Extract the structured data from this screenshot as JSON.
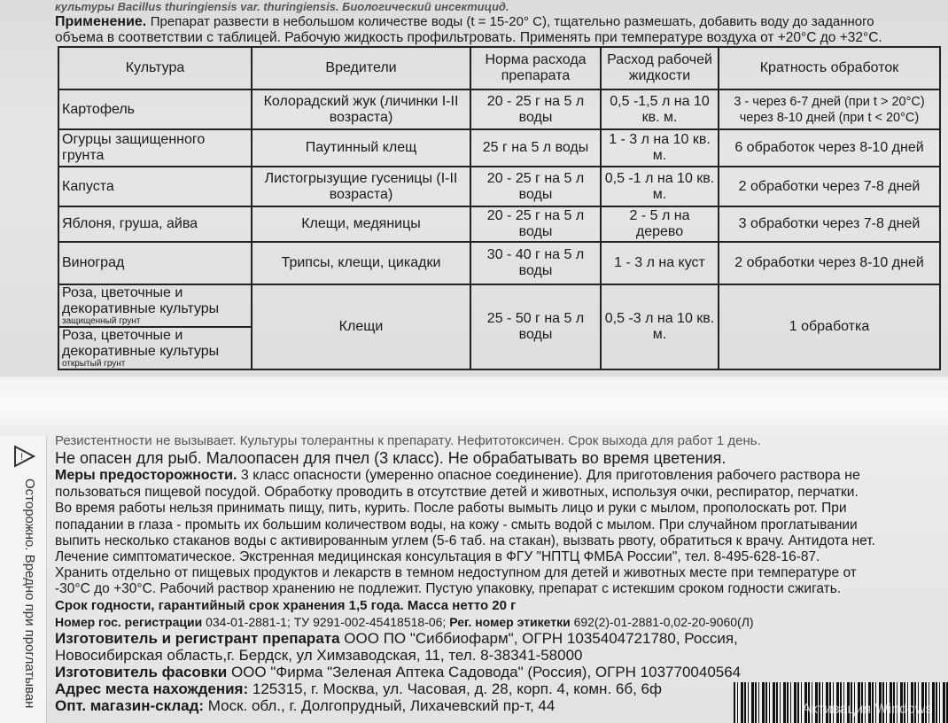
{
  "top_text": {
    "line0": "культуры Bacillus thuringiensis var. thuringiensis. Биологический инсектицид.",
    "application_label": "Применение.",
    "line1": "Препарат развести в небольшом количестве воды (t = 15-20° C), тщательно размешать, добавить воду до заданного",
    "line2": "объема в соответствии с таблицей. Рабочую жидкость профильтровать. Применять при температуре воздуха от +20°C до +32°C."
  },
  "table": {
    "headers": [
      "Культура",
      "Вредители",
      "Норма расхода препарата",
      "Расход рабочей жидкости",
      "Кратность обработок"
    ],
    "rows": [
      {
        "crop": "Картофель",
        "pests": "Колорадский жук (личинки I-II возраста)",
        "rate": "20 - 25 г на 5 л воды",
        "liquid": "0,5 -1,5 л на 10 кв. м.",
        "freq": "3 - через 6-7 дней (при t > 20°C) через 8-10 дней (при t < 20°C)"
      },
      {
        "crop": "Огурцы защищенного грунта",
        "pests": "Паутинный клещ",
        "rate": "25 г на 5 л воды",
        "liquid": "1 - 3 л на 10 кв. м.",
        "freq": "6 обработок через 8-10 дней"
      },
      {
        "crop": "Капуста",
        "pests": "Листогрызущие гусеницы (I-II возраста)",
        "rate": "20 - 25 г на 5 л воды",
        "liquid": "0,5 -1 л на 10 кв. м.",
        "freq": "2 обработки через 7-8 дней"
      },
      {
        "crop": "Яблоня, груша, айва",
        "pests": "Клещи, медяницы",
        "rate": "20 - 25 г на 5 л воды",
        "liquid": "2 - 5 л на дерево",
        "freq": "3 обработки через 7-8 дней"
      },
      {
        "crop": "Виноград",
        "pests": "Трипсы, клещи, цикадки",
        "rate": "30 - 40 г на 5 л воды",
        "liquid": "1 - 3 л на куст",
        "freq": "2 обработки через 8-10 дней"
      }
    ],
    "merged": {
      "crop1": "Роза, цветочные и декоративные культуры",
      "crop1_note": "защищенный грунт",
      "crop2": "Роза, цветочные и декоративные культуры",
      "crop2_note": "открытый грунт",
      "pests": "Клещи",
      "rate": "25 - 50 г на 5 л воды",
      "liquid": "0,5 -3 л на 10 кв. м.",
      "freq": "1 обработка"
    }
  },
  "bottom_text": {
    "l0": "Резистентности не вызывает. Культуры толерантны к препарату. Нефитотоксичен. Срок выхода для работ 1 день.",
    "l1": "Не опасен для рыб. Малоопасен для пчел (3 класс). Не обрабатывать во время цветения.",
    "precautions_label": "Меры предосторожности.",
    "l2": "3 класс опасности (умеренно опасное соединение). Для приготовления рабочего раствора не",
    "l3": "пользоваться пищевой посудой. Обработку проводить в отсутствие детей и животных, используя очки, респиратор, перчатки.",
    "l4": "Во время работы нельзя принимать пищу, пить, курить. После работы вымыть лицо и руки с мылом, прополоскать рот. При",
    "l5": "попадании в глаза - промыть их большим количеством воды, на кожу - смыть водой с мылом. При случайном проглатывании",
    "l6": "выпить несколько стаканов воды с активированным углем (5-6 таб. на стакан), вызвать рвоту, обратиться к врачу. Антидота нет.",
    "l7": "Лечение симптоматическое. Экстренная медицинская консультация в ФГУ \"НПТЦ ФМБА России\", тел. 8-495-628-16-87.",
    "l8": "Хранить отдельно от пищевых продуктов и лекарств в темном недоступном для детей и животных месте при температуре от",
    "l9": "-30°C до +30°C. Рабочий раствор хранению не подлежит. Пустую упаковку, препарат с истекшим сроком годности сжигать.",
    "l10": "Срок годности, гарантийный срок хранения 1,5 года.  Масса нетто 20 г",
    "reg_label": "Номер гос. регистрации",
    "reg_value": "034-01-2881-1; ТУ 9291-002-45418518-06;",
    "label_reg_label": "Рег. номер этикетки",
    "label_reg_value": "692(2)-01-2881-0,02-20-9060(Л)",
    "maker_label": "Изготовитель и регистрант препарата",
    "maker_value": "ООО ПО \"Сиббиофарм\", ОГРН 1035404721780, Россия,",
    "maker_addr": "Новосибирская область,г. Бердск, ул Химзаводская, 11, тел. 8-38341-58000",
    "packer_label": "Изготовитель фасовки",
    "packer_value": "ООО \"Фирма \"Зеленая  Аптека Садовода\" (Россия), ОГРН 103770040564",
    "address_label": "Адрес места нахождения:",
    "address_value": "125315, г. Москва, ул. Часовая, д. 28, корп. 4, комн. 6б, 6ф",
    "store_label": "Опт. магазин-склад:",
    "store_value": "Моск. обл., г. Долгопрудный, Лихачевский пр-т, 44"
  },
  "side_warning": "Осторожно. Вредно при проглатыван",
  "watermark": "Активация Windows"
}
